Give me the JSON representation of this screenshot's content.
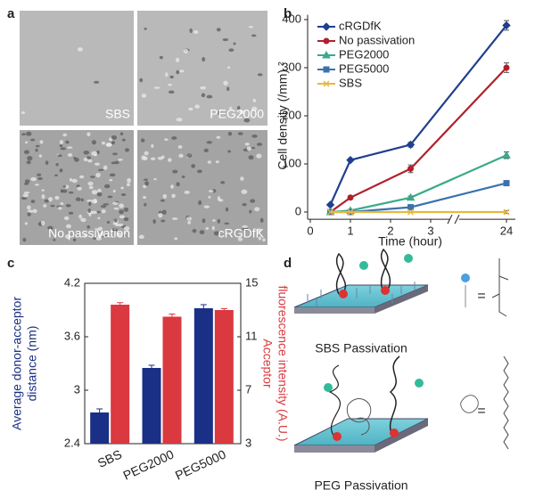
{
  "panel_labels": [
    "a",
    "b",
    "c",
    "d"
  ],
  "micrographs": [
    "SBS",
    "PEG2000",
    "No passivation",
    "cRGDfK"
  ],
  "diagram": {
    "captions": [
      "SBS Passivation",
      "PEG Passivation"
    ],
    "equals": [
      "=",
      "="
    ]
  },
  "chart_data": [
    {
      "type": "line",
      "x_label": "Time (hour)",
      "y_label": "Cell density (/mm) ²",
      "x": [
        0.5,
        1,
        2.5,
        24
      ],
      "xlim": [
        0,
        24
      ],
      "xticks": [
        0,
        1,
        2,
        3,
        24
      ],
      "axis_break": [
        3,
        24
      ],
      "ylim": [
        -15,
        410
      ],
      "yticks": [
        0,
        100,
        200,
        300,
        400
      ],
      "legend": "upper left",
      "series": [
        {
          "name": "cRGDfK",
          "color": "#1f3f8f",
          "marker": "diamond",
          "values": [
            15,
            108,
            140,
            388
          ],
          "errors": [
            0,
            3,
            5,
            10
          ]
        },
        {
          "name": "No passivation",
          "color": "#b0202a",
          "marker": "circle",
          "values": [
            0,
            30,
            90,
            300
          ],
          "errors": [
            0,
            3,
            8,
            10
          ]
        },
        {
          "name": "PEG2000",
          "color": "#3aaa8a",
          "marker": "triangle",
          "values": [
            0,
            3,
            30,
            118
          ],
          "errors": [
            0,
            0,
            3,
            7
          ]
        },
        {
          "name": "PEG5000",
          "color": "#3a72b0",
          "marker": "square",
          "values": [
            0,
            0,
            10,
            60
          ],
          "errors": [
            0,
            0,
            0,
            3
          ]
        },
        {
          "name": "SBS",
          "color": "#e8b840",
          "marker": "x",
          "values": [
            0,
            0,
            0,
            0
          ],
          "errors": [
            0,
            0,
            0,
            3
          ]
        }
      ]
    },
    {
      "type": "bar",
      "categories": [
        "SBS",
        "PEG2000",
        "PEG5000"
      ],
      "y_label": [
        "Average donor-acceptor",
        "distance (nm)"
      ],
      "y2_label": [
        "Acceptor",
        "fluorescence intensity (A.U.)"
      ],
      "ylim": [
        2.4,
        4.2
      ],
      "yticks": [
        2.4,
        3,
        3.6,
        4.2
      ],
      "y2lim": [
        3,
        15
      ],
      "y2ticks": [
        3,
        7,
        11,
        15
      ],
      "series": [
        {
          "color": "#1a2f86",
          "values": [
            2.75,
            3.25,
            3.92
          ],
          "errors": [
            0.04,
            0.03,
            0.04
          ]
        },
        {
          "color": "#d9393f",
          "axis": "y2",
          "values": [
            13.4,
            12.5,
            13.0
          ],
          "errors": [
            0.15,
            0.2,
            0.1
          ]
        }
      ]
    }
  ]
}
